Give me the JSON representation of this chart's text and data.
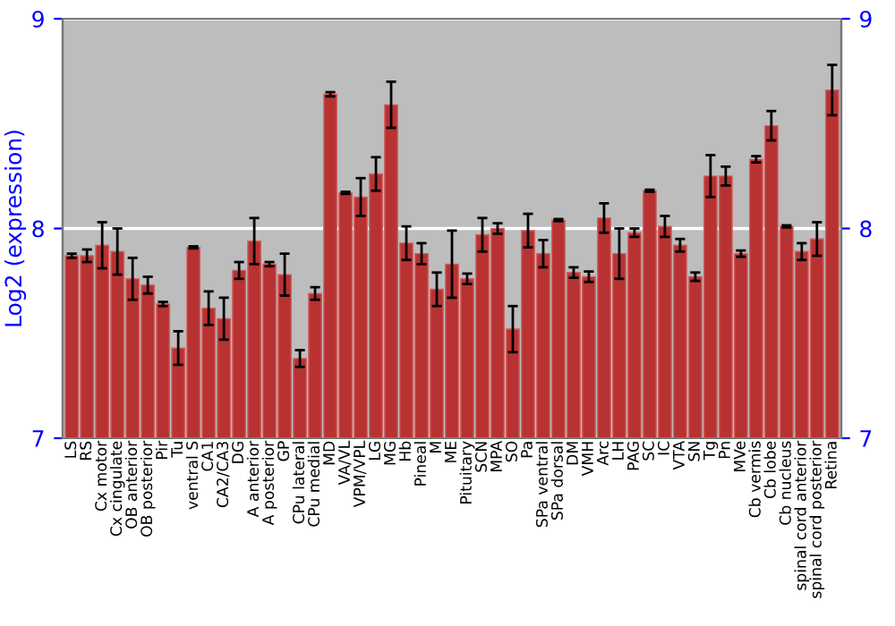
{
  "chart_data": {
    "type": "bar",
    "ylabel": "Log2 (expression)",
    "categories": [
      "LS",
      "RS",
      "Cx motor",
      "Cx cingulate",
      "OB anterior",
      "OB posterior",
      "Pir",
      "Tu",
      "ventral S",
      "CA1",
      "CA2/CA3",
      "DG",
      "A anterior",
      "A posterior",
      "GP",
      "CPu lateral",
      "CPu medial",
      "MD",
      "VA/VL",
      "VPM/VPL",
      "LG",
      "MG",
      "Hb",
      "Pineal",
      "M",
      "ME",
      "Pituitary",
      "SCN",
      "MPA",
      "SO",
      "Pa",
      "SPa ventral",
      "SPa dorsal",
      "DM",
      "VMH",
      "Arc",
      "LH",
      "PAG",
      "SC",
      "IC",
      "VTA",
      "SN",
      "Tg",
      "Pn",
      "MVe",
      "Cb vermis",
      "Cb lobe",
      "Cb nucleus",
      "spinal cord anterior",
      "spinal cord posterior",
      "Retina"
    ],
    "values": [
      7.87,
      7.87,
      7.92,
      7.89,
      7.76,
      7.73,
      7.64,
      7.43,
      7.91,
      7.62,
      7.57,
      7.8,
      7.94,
      7.83,
      7.78,
      7.38,
      7.69,
      8.64,
      8.17,
      8.15,
      8.26,
      8.59,
      7.93,
      7.88,
      7.71,
      7.83,
      7.76,
      7.97,
      8.0,
      7.52,
      7.99,
      7.88,
      8.04,
      7.79,
      7.77,
      8.05,
      7.88,
      7.98,
      8.18,
      8.01,
      7.92,
      7.77,
      8.25,
      8.25,
      7.88,
      8.33,
      8.49,
      8.01,
      7.89,
      7.95,
      8.66
    ],
    "errors": [
      0.01,
      0.03,
      0.11,
      0.11,
      0.1,
      0.04,
      0.01,
      0.08,
      0.005,
      0.08,
      0.1,
      0.04,
      0.11,
      0.01,
      0.1,
      0.04,
      0.03,
      0.01,
      0.005,
      0.09,
      0.08,
      0.11,
      0.08,
      0.05,
      0.08,
      0.16,
      0.025,
      0.08,
      0.025,
      0.11,
      0.08,
      0.065,
      0.005,
      0.025,
      0.025,
      0.07,
      0.12,
      0.02,
      0.005,
      0.05,
      0.03,
      0.02,
      0.1,
      0.045,
      0.015,
      0.015,
      0.07,
      0.005,
      0.04,
      0.08,
      0.12
    ],
    "color": "#b83232",
    "ylim": [
      7,
      9
    ],
    "yticks": [
      7,
      8,
      9
    ],
    "y2lim": [
      7,
      9
    ],
    "y2ticks": [
      7,
      8,
      9
    ],
    "grid": "y"
  }
}
